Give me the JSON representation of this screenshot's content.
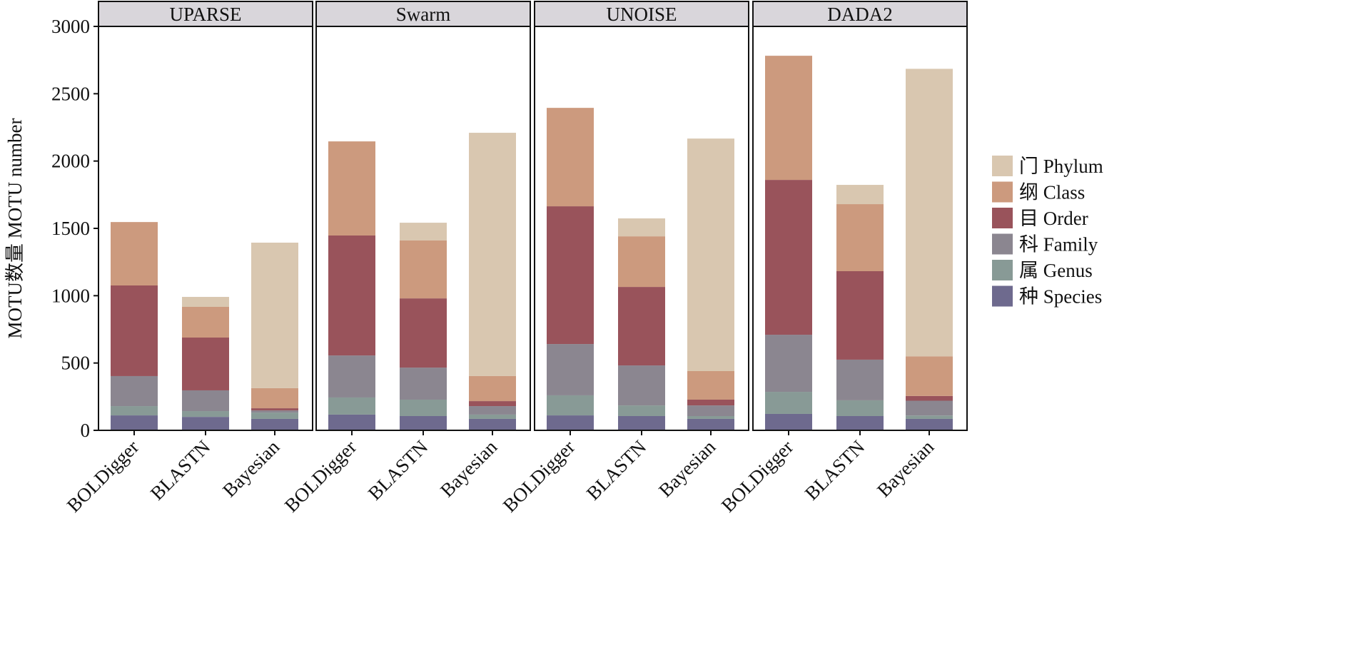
{
  "chart_data": {
    "type": "bar",
    "stacked": true,
    "title": "",
    "ylabel": "MOTU数量 MOTU number",
    "xlabel": "",
    "ylim": [
      0,
      3000
    ],
    "yticks": [
      0,
      500,
      1000,
      1500,
      2000,
      2500,
      3000
    ],
    "categories": [
      "BOLDigger",
      "BLASTN",
      "Bayesian"
    ],
    "legend_position": "right",
    "levels": [
      {
        "key": "species",
        "label": "种 Species",
        "color": "#6e6a8e"
      },
      {
        "key": "genus",
        "label": "属 Genus",
        "color": "#889a96"
      },
      {
        "key": "family",
        "label": "科 Family",
        "color": "#8b8690"
      },
      {
        "key": "order",
        "label": "目 Order",
        "color": "#99535b"
      },
      {
        "key": "class",
        "label": "纲 Class",
        "color": "#cc9a7e"
      },
      {
        "key": "phylum",
        "label": "门 Phylum",
        "color": "#d9c7b0"
      }
    ],
    "panels": [
      {
        "title": "UPARSE",
        "values": [
          [
            111,
            69,
            223,
            673,
            471,
            0
          ],
          [
            100,
            43,
            154,
            392,
            228,
            74
          ],
          [
            85,
            47,
            16,
            16,
            149,
            1081
          ]
        ]
      },
      {
        "title": "Swarm",
        "values": [
          [
            117,
            127,
            312,
            891,
            699,
            0
          ],
          [
            106,
            122,
            238,
            514,
            430,
            132
          ],
          [
            85,
            32,
            63,
            37,
            186,
            1807
          ]
        ]
      },
      {
        "title": "UNOISE",
        "values": [
          [
            111,
            149,
            381,
            1023,
            731,
            0
          ],
          [
            106,
            79,
            297,
            583,
            376,
            133
          ],
          [
            85,
            21,
            79,
            43,
            212,
            1727
          ]
        ]
      },
      {
        "title": "DADA2",
        "values": [
          [
            122,
            164,
            424,
            1150,
            922,
            0
          ],
          [
            106,
            117,
            302,
            657,
            498,
            143
          ],
          [
            85,
            25,
            110,
            35,
            295,
            2135
          ]
        ]
      }
    ]
  }
}
